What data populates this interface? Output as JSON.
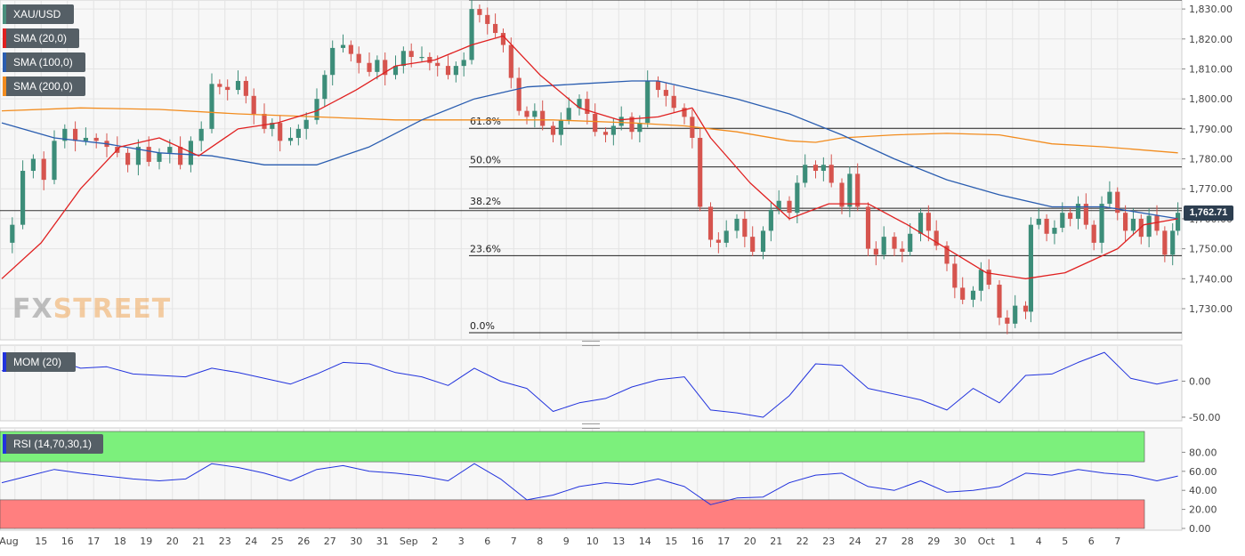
{
  "colors": {
    "up": "#3c8d79",
    "down": "#d6544e",
    "sma20": "#e02020",
    "sma100": "#2a5db0",
    "sma200": "#f28c1e",
    "momentum": "#2233dd",
    "rsi": "#2233dd",
    "overbought_zone": "#7cf07c",
    "oversold_zone": "#ff7f7f",
    "price_tag": "#2d3e50",
    "watermark_fx": "#8f8f8f",
    "watermark_street": "#f0a85a"
  },
  "legends": [
    {
      "label": "XAU/USD",
      "color": "#4a8f7d"
    },
    {
      "label": "SMA (20,0)",
      "color": "#e02020"
    },
    {
      "label": "SMA (100,0)",
      "color": "#2a5db0"
    },
    {
      "label": "SMA (200,0)",
      "color": "#f28c1e"
    }
  ],
  "watermark": {
    "part1": "FX",
    "part2": "STREET"
  },
  "current_price": "1,762.71",
  "momentum_label": "MOM (20)",
  "rsi_label": "RSI (14,70,30,1)",
  "chart_data": {
    "type": "candlestick",
    "symbol": "XAU/USD",
    "timeframe": "4H",
    "y_ticks": [
      "1,730.00",
      "1,740.00",
      "1,750.00",
      "1,760.00",
      "1,770.00",
      "1,780.00",
      "1,790.00",
      "1,800.00",
      "1,810.00",
      "1,820.00",
      "1,830.00"
    ],
    "ylim": [
      1720.5,
      1833
    ],
    "x_ticks": [
      {
        "label": "Aug",
        "day": 0
      },
      {
        "label": "15",
        "day": 1
      },
      {
        "label": "16",
        "day": 2
      },
      {
        "label": "17",
        "day": 3
      },
      {
        "label": "18",
        "day": 4
      },
      {
        "label": "19",
        "day": 5
      },
      {
        "label": "20",
        "day": 6
      },
      {
        "label": "21",
        "day": 7
      },
      {
        "label": "23",
        "day": 8
      },
      {
        "label": "24",
        "day": 9
      },
      {
        "label": "25",
        "day": 10
      },
      {
        "label": "26",
        "day": 11
      },
      {
        "label": "27",
        "day": 12
      },
      {
        "label": "30",
        "day": 13
      },
      {
        "label": "31",
        "day": 14
      },
      {
        "label": "Sep",
        "day": 15
      },
      {
        "label": "2",
        "day": 16
      },
      {
        "label": "3",
        "day": 17
      },
      {
        "label": "6",
        "day": 18
      },
      {
        "label": "7",
        "day": 19
      },
      {
        "label": "8",
        "day": 20
      },
      {
        "label": "9",
        "day": 21
      },
      {
        "label": "10",
        "day": 22
      },
      {
        "label": "13",
        "day": 23
      },
      {
        "label": "14",
        "day": 24
      },
      {
        "label": "15",
        "day": 25
      },
      {
        "label": "16",
        "day": 26
      },
      {
        "label": "17",
        "day": 27
      },
      {
        "label": "20",
        "day": 28
      },
      {
        "label": "21",
        "day": 29
      },
      {
        "label": "22",
        "day": 30
      },
      {
        "label": "23",
        "day": 31
      },
      {
        "label": "24",
        "day": 32
      },
      {
        "label": "27",
        "day": 33
      },
      {
        "label": "28",
        "day": 34
      },
      {
        "label": "29",
        "day": 35
      },
      {
        "label": "30",
        "day": 36
      },
      {
        "label": "Oct",
        "day": 37
      },
      {
        "label": "1",
        "day": 38
      },
      {
        "label": "4",
        "day": 39
      },
      {
        "label": "5",
        "day": 40
      },
      {
        "label": "6",
        "day": 41
      },
      {
        "label": "7",
        "day": 42
      }
    ],
    "fibonacci": [
      {
        "label": "0.0%",
        "price": 1722.0
      },
      {
        "label": "23.6%",
        "price": 1747.7
      },
      {
        "label": "38.2%",
        "price": 1763.5
      },
      {
        "label": "50.0%",
        "price": 1777.3
      },
      {
        "label": "61.8%",
        "price": 1790.2
      },
      {
        "label": "",
        "price": 1833.0
      }
    ],
    "hline_price": 1762.71,
    "close_path": [
      [
        0,
        1752
      ],
      [
        0.4,
        1758
      ],
      [
        0.8,
        1776
      ],
      [
        1.2,
        1780
      ],
      [
        1.6,
        1773
      ],
      [
        2.0,
        1786
      ],
      [
        2.4,
        1790
      ],
      [
        2.8,
        1786
      ],
      [
        3.2,
        1787
      ],
      [
        3.6,
        1786
      ],
      [
        4.0,
        1784
      ],
      [
        4.4,
        1782
      ],
      [
        4.8,
        1778
      ],
      [
        5.2,
        1784
      ],
      [
        5.6,
        1779
      ],
      [
        6.0,
        1782
      ],
      [
        6.4,
        1784
      ],
      [
        6.8,
        1778
      ],
      [
        7.2,
        1786
      ],
      [
        7.6,
        1790
      ],
      [
        8.0,
        1805
      ],
      [
        8.3,
        1804
      ],
      [
        8.6,
        1803
      ],
      [
        9.0,
        1806
      ],
      [
        9.3,
        1801
      ],
      [
        9.6,
        1795
      ],
      [
        10.0,
        1790
      ],
      [
        10.3,
        1792
      ],
      [
        10.6,
        1786
      ],
      [
        11.0,
        1787
      ],
      [
        11.3,
        1790
      ],
      [
        11.6,
        1793
      ],
      [
        12.0,
        1800
      ],
      [
        12.3,
        1808
      ],
      [
        12.6,
        1817
      ],
      [
        13.0,
        1818
      ],
      [
        13.3,
        1815
      ],
      [
        13.6,
        1812
      ],
      [
        14.0,
        1809
      ],
      [
        14.3,
        1813
      ],
      [
        14.6,
        1808
      ],
      [
        15.0,
        1811
      ],
      [
        15.3,
        1816
      ],
      [
        15.6,
        1814
      ],
      [
        16.0,
        1814
      ],
      [
        16.3,
        1812
      ],
      [
        16.6,
        1811
      ],
      [
        17.0,
        1808
      ],
      [
        17.3,
        1811
      ],
      [
        17.6,
        1813
      ],
      [
        17.9,
        1830
      ],
      [
        18.2,
        1828
      ],
      [
        18.5,
        1825
      ],
      [
        18.8,
        1822
      ],
      [
        19.1,
        1818
      ],
      [
        19.4,
        1807
      ],
      [
        19.7,
        1796
      ],
      [
        20.0,
        1794
      ],
      [
        20.3,
        1796
      ],
      [
        20.6,
        1791
      ],
      [
        21.0,
        1788
      ],
      [
        21.3,
        1793
      ],
      [
        21.6,
        1797
      ],
      [
        22.0,
        1800
      ],
      [
        22.3,
        1795
      ],
      [
        22.6,
        1789
      ],
      [
        23.0,
        1788
      ],
      [
        23.3,
        1791
      ],
      [
        23.6,
        1794
      ],
      [
        24.0,
        1789
      ],
      [
        24.3,
        1792
      ],
      [
        24.6,
        1806
      ],
      [
        25.0,
        1803
      ],
      [
        25.3,
        1801
      ],
      [
        25.6,
        1797
      ],
      [
        26.0,
        1794
      ],
      [
        26.3,
        1787
      ],
      [
        26.6,
        1764
      ],
      [
        27.0,
        1753
      ],
      [
        27.3,
        1752
      ],
      [
        27.6,
        1756
      ],
      [
        28.0,
        1760
      ],
      [
        28.3,
        1754
      ],
      [
        28.6,
        1749
      ],
      [
        29.0,
        1756
      ],
      [
        29.3,
        1763
      ],
      [
        29.6,
        1766
      ],
      [
        30.0,
        1762
      ],
      [
        30.3,
        1772
      ],
      [
        30.6,
        1778
      ],
      [
        31.0,
        1776
      ],
      [
        31.3,
        1778
      ],
      [
        31.6,
        1772
      ],
      [
        32.0,
        1764
      ],
      [
        32.3,
        1775
      ],
      [
        32.6,
        1764
      ],
      [
        33.0,
        1750
      ],
      [
        33.3,
        1748
      ],
      [
        33.6,
        1754
      ],
      [
        34.0,
        1750
      ],
      [
        34.3,
        1749
      ],
      [
        34.6,
        1755
      ],
      [
        35.0,
        1762
      ],
      [
        35.3,
        1756
      ],
      [
        35.6,
        1751
      ],
      [
        36.0,
        1745
      ],
      [
        36.3,
        1737
      ],
      [
        36.6,
        1733
      ],
      [
        37.0,
        1736
      ],
      [
        37.3,
        1743
      ],
      [
        37.6,
        1738
      ],
      [
        38.0,
        1727
      ],
      [
        38.3,
        1725
      ],
      [
        38.6,
        1731
      ],
      [
        39.0,
        1729
      ],
      [
        39.2,
        1758
      ],
      [
        39.5,
        1760
      ],
      [
        39.8,
        1755
      ],
      [
        40.1,
        1757
      ],
      [
        40.4,
        1762
      ],
      [
        40.7,
        1760
      ],
      [
        41.0,
        1765
      ],
      [
        41.3,
        1758
      ],
      [
        41.6,
        1752
      ],
      [
        41.9,
        1765
      ],
      [
        42.2,
        1769
      ],
      [
        42.5,
        1762
      ],
      [
        42.8,
        1756
      ],
      [
        43.1,
        1760
      ],
      [
        43.4,
        1754
      ],
      [
        43.7,
        1761
      ],
      [
        44.0,
        1756
      ],
      [
        44.3,
        1748
      ],
      [
        44.6,
        1756
      ],
      [
        44.8,
        1762
      ]
    ],
    "sma20_path": [
      [
        0,
        1740
      ],
      [
        1.5,
        1752
      ],
      [
        3,
        1770
      ],
      [
        4.5,
        1784
      ],
      [
        6,
        1787
      ],
      [
        7.5,
        1781
      ],
      [
        9,
        1790
      ],
      [
        10.5,
        1792
      ],
      [
        12,
        1796
      ],
      [
        13.5,
        1803
      ],
      [
        15,
        1811
      ],
      [
        16.5,
        1813
      ],
      [
        17.9,
        1818
      ],
      [
        19.1,
        1821
      ],
      [
        20.5,
        1808
      ],
      [
        22,
        1797
      ],
      [
        23.5,
        1793
      ],
      [
        25,
        1794
      ],
      [
        26.3,
        1797
      ],
      [
        27,
        1787
      ],
      [
        28.5,
        1772
      ],
      [
        30,
        1760
      ],
      [
        31.5,
        1765
      ],
      [
        33,
        1765
      ],
      [
        34.5,
        1758
      ],
      [
        36,
        1750
      ],
      [
        37.5,
        1742
      ],
      [
        39,
        1740
      ],
      [
        40.5,
        1742
      ],
      [
        41.5,
        1746
      ],
      [
        42.5,
        1750
      ],
      [
        43.5,
        1758
      ],
      [
        44.8,
        1760
      ]
    ],
    "sma100_path": [
      [
        0,
        1792
      ],
      [
        2,
        1787
      ],
      [
        4,
        1785
      ],
      [
        6,
        1782
      ],
      [
        8,
        1781
      ],
      [
        10,
        1778
      ],
      [
        12,
        1778
      ],
      [
        14,
        1784
      ],
      [
        16,
        1793
      ],
      [
        18,
        1800
      ],
      [
        20,
        1804
      ],
      [
        22,
        1805
      ],
      [
        24,
        1806
      ],
      [
        25,
        1806
      ],
      [
        26,
        1804
      ],
      [
        28,
        1800
      ],
      [
        30,
        1795
      ],
      [
        32,
        1788
      ],
      [
        34,
        1780
      ],
      [
        36,
        1773
      ],
      [
        38,
        1768
      ],
      [
        40,
        1764
      ],
      [
        42,
        1764
      ],
      [
        44.8,
        1760
      ]
    ],
    "sma200_path": [
      [
        0,
        1796
      ],
      [
        3,
        1797
      ],
      [
        6,
        1796.5
      ],
      [
        9,
        1795
      ],
      [
        12,
        1794
      ],
      [
        15,
        1793
      ],
      [
        18,
        1793
      ],
      [
        21,
        1793
      ],
      [
        24,
        1792
      ],
      [
        26,
        1791
      ],
      [
        28,
        1789
      ],
      [
        30,
        1786
      ],
      [
        31,
        1785.5
      ],
      [
        32,
        1787
      ],
      [
        34,
        1788
      ],
      [
        36,
        1788.5
      ],
      [
        38,
        1788
      ],
      [
        40,
        1785
      ],
      [
        42,
        1784
      ],
      [
        44.8,
        1782
      ]
    ],
    "momentum": {
      "label": "MOM (20)",
      "y_ticks": [
        "0.00",
        "-50.00"
      ],
      "ylim": [
        -55,
        50
      ],
      "path": [
        [
          0,
          14
        ],
        [
          1,
          35
        ],
        [
          2,
          30
        ],
        [
          3,
          18
        ],
        [
          4,
          20
        ],
        [
          5,
          10
        ],
        [
          6,
          8
        ],
        [
          7,
          6
        ],
        [
          8,
          18
        ],
        [
          9,
          12
        ],
        [
          10,
          4
        ],
        [
          11,
          -4
        ],
        [
          12,
          10
        ],
        [
          13,
          26
        ],
        [
          14,
          24
        ],
        [
          15,
          12
        ],
        [
          16,
          6
        ],
        [
          17,
          -6
        ],
        [
          18,
          18
        ],
        [
          19,
          0
        ],
        [
          20,
          -10
        ],
        [
          21,
          -42
        ],
        [
          22,
          -30
        ],
        [
          23,
          -24
        ],
        [
          24,
          -8
        ],
        [
          25,
          2
        ],
        [
          26,
          6
        ],
        [
          27,
          -40
        ],
        [
          28,
          -44
        ],
        [
          29,
          -50
        ],
        [
          30,
          -20
        ],
        [
          31,
          24
        ],
        [
          32,
          22
        ],
        [
          33,
          -10
        ],
        [
          34,
          -18
        ],
        [
          35,
          -26
        ],
        [
          36,
          -40
        ],
        [
          37,
          -10
        ],
        [
          38,
          -30
        ],
        [
          39,
          8
        ],
        [
          40,
          10
        ],
        [
          41,
          26
        ],
        [
          42,
          40
        ],
        [
          43,
          4
        ],
        [
          44,
          -4
        ],
        [
          44.8,
          2
        ]
      ]
    },
    "rsi": {
      "label": "RSI (14,70,30,1)",
      "y_ticks": [
        "0.00",
        "20.00",
        "40.00",
        "60.00",
        "80.00"
      ],
      "ylim": [
        0,
        100
      ],
      "overbought": 70,
      "oversold": 30,
      "path": [
        [
          0,
          48
        ],
        [
          1,
          55
        ],
        [
          2,
          62
        ],
        [
          3,
          58
        ],
        [
          4,
          55
        ],
        [
          5,
          52
        ],
        [
          6,
          50
        ],
        [
          7,
          52
        ],
        [
          8,
          68
        ],
        [
          9,
          64
        ],
        [
          10,
          58
        ],
        [
          11,
          50
        ],
        [
          12,
          62
        ],
        [
          13,
          66
        ],
        [
          14,
          60
        ],
        [
          15,
          58
        ],
        [
          16,
          55
        ],
        [
          17,
          50
        ],
        [
          18,
          68
        ],
        [
          19,
          52
        ],
        [
          20,
          30
        ],
        [
          21,
          35
        ],
        [
          22,
          44
        ],
        [
          23,
          48
        ],
        [
          24,
          46
        ],
        [
          25,
          52
        ],
        [
          26,
          44
        ],
        [
          27,
          25
        ],
        [
          28,
          32
        ],
        [
          29,
          33
        ],
        [
          30,
          48
        ],
        [
          31,
          56
        ],
        [
          32,
          58
        ],
        [
          33,
          44
        ],
        [
          34,
          40
        ],
        [
          35,
          50
        ],
        [
          36,
          38
        ],
        [
          37,
          40
        ],
        [
          38,
          44
        ],
        [
          39,
          58
        ],
        [
          40,
          56
        ],
        [
          41,
          62
        ],
        [
          42,
          58
        ],
        [
          43,
          56
        ],
        [
          44,
          50
        ],
        [
          44.8,
          55
        ]
      ]
    }
  }
}
